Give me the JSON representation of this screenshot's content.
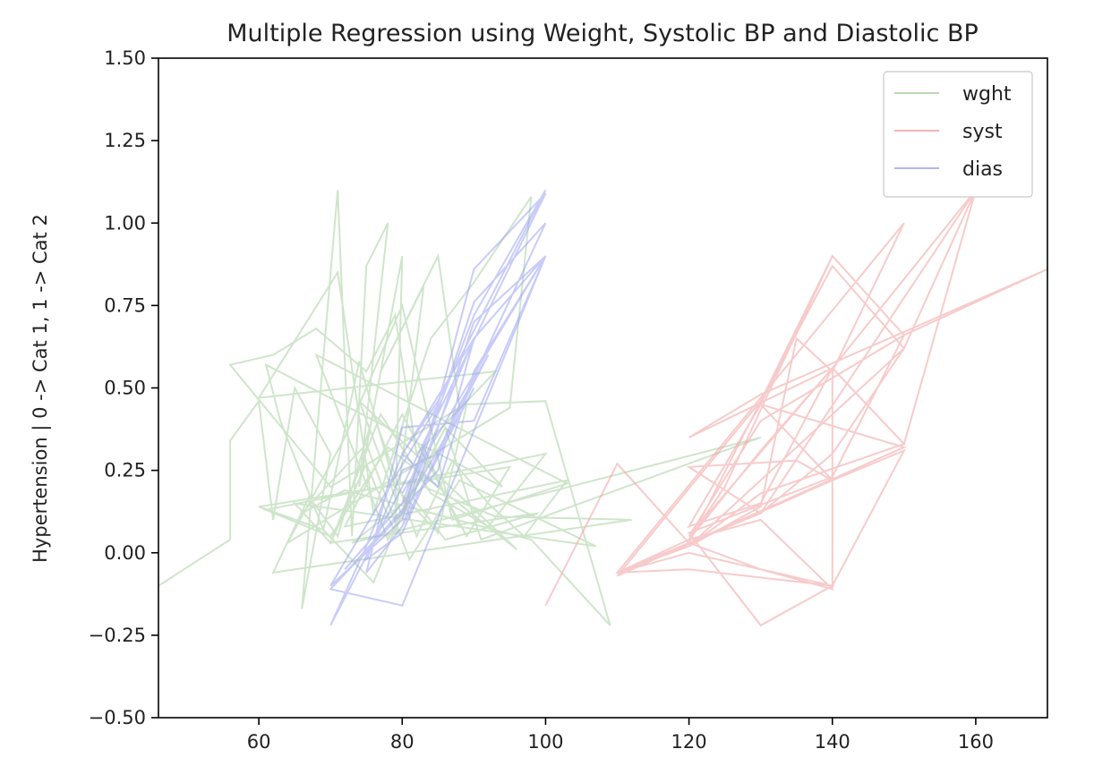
{
  "chart_data": {
    "type": "line",
    "title": "Multiple Regression using Weight, Systolic BP and Diastolic BP",
    "xlabel": "",
    "ylabel": "Hypertension | 0 -> Cat 1, 1 -> Cat 2",
    "xlim": [
      46,
      170
    ],
    "ylim": [
      -0.5,
      1.5
    ],
    "xticks": [
      "60",
      "80",
      "100",
      "120",
      "140",
      "160"
    ],
    "yticks": [
      "−0.50",
      "−0.25",
      "0.00",
      "0.25",
      "0.50",
      "0.75",
      "1.00",
      "1.25",
      "1.50"
    ],
    "xtick_values": [
      60,
      80,
      100,
      120,
      140,
      160
    ],
    "ytick_values": [
      -0.5,
      -0.25,
      0,
      0.25,
      0.5,
      0.75,
      1.0,
      1.25,
      1.5
    ],
    "grid": false,
    "legend_position": "top-right",
    "series": [
      {
        "name": "wght",
        "color": "#a8cfa0",
        "opacity": 0.55,
        "x": [
          46,
          56,
          56,
          60,
          62,
          65,
          70,
          66,
          71,
          73,
          75,
          78,
          74,
          80,
          79,
          83,
          77,
          85,
          88,
          70,
          56,
          62,
          68,
          75,
          79,
          82,
          93,
          60,
          71,
          76,
          84,
          90,
          98,
          95,
          64,
          72,
          80,
          87,
          103,
          68,
          78,
          86,
          94,
          61,
          63,
          69,
          74,
          79,
          85,
          89,
          100,
          109,
          98,
          72,
          66,
          75,
          81,
          88,
          107,
          65,
          70,
          77,
          84,
          92,
          100,
          61,
          70,
          78,
          96,
          74,
          80,
          86,
          91,
          130,
          73,
          83,
          93,
          112,
          62,
          67,
          71,
          76,
          82,
          87,
          92,
          97,
          103,
          72,
          80,
          89,
          95,
          60,
          69,
          76,
          81,
          86,
          99,
          70,
          75,
          79,
          83,
          88
        ],
        "y": [
          -0.1,
          0.04,
          0.34,
          0.46,
          0.1,
          0.5,
          0.3,
          -0.17,
          1.1,
          0.05,
          0.87,
          1.0,
          0.2,
          0.9,
          0.1,
          0.81,
          0.55,
          0.9,
          0.44,
          0.2,
          0.57,
          0.6,
          0.68,
          0.55,
          0.72,
          0.3,
          0.55,
          0.47,
          0.85,
          0.12,
          0.65,
          0.82,
          1.08,
          0.44,
          0.03,
          0.35,
          0.75,
          0.1,
          0.21,
          0.6,
          0.04,
          0.38,
          0.2,
          0.57,
          0.4,
          0.07,
          0.58,
          0.2,
          0.06,
          0.45,
          0.46,
          -0.22,
          0.04,
          0.19,
          0.12,
          0.33,
          -0.02,
          0.22,
          0.02,
          0.15,
          0.03,
          0.42,
          0.18,
          0.08,
          0.3,
          0.13,
          0.05,
          0.32,
          0.01,
          0.46,
          0.11,
          0.38,
          0.04,
          0.35,
          0.03,
          0.2,
          0.11,
          0.1,
          -0.06,
          0.17,
          0.05,
          0.42,
          0.05,
          0.28,
          0.15,
          0.05,
          0.22,
          0.08,
          0.42,
          0.05,
          0.26,
          0.14,
          0.07,
          -0.09,
          0.18,
          0.04,
          0.12,
          0.03,
          0.27,
          0.06,
          0.32,
          0.08
        ]
      },
      {
        "name": "syst",
        "color": "#f2a8a8",
        "opacity": 0.6,
        "x": [
          100,
          110,
          120,
          130,
          140,
          150,
          130,
          120,
          140,
          150,
          160,
          130,
          120,
          135,
          140,
          110,
          130,
          140,
          150,
          120,
          130,
          135,
          140,
          150,
          110,
          120,
          140,
          130,
          120,
          140,
          150,
          170,
          130,
          120,
          140,
          140,
          130,
          120,
          110,
          120,
          150,
          130,
          140,
          125,
          120,
          130,
          140,
          150,
          130,
          120,
          110,
          120,
          140,
          150,
          140,
          130,
          120,
          130,
          140,
          160,
          150,
          140,
          130,
          120,
          130,
          140
        ],
        "y": [
          -0.16,
          0.27,
          0.03,
          0.46,
          0.9,
          0.66,
          0.4,
          0.05,
          0.56,
          0.33,
          1.1,
          0.12,
          0.26,
          0.28,
          0.22,
          -0.07,
          0.46,
          0.87,
          0.62,
          0.02,
          0.14,
          0.65,
          0.55,
          1.0,
          -0.06,
          -0.05,
          -0.1,
          -0.22,
          0.06,
          0.23,
          0.66,
          0.86,
          0.48,
          0.35,
          0.56,
          -0.11,
          0.1,
          0.04,
          -0.06,
          0.03,
          0.32,
          0.45,
          0.9,
          0.2,
          0.04,
          0.31,
          0.56,
          0.33,
          0.18,
          0.02,
          -0.06,
          0.0,
          -0.1,
          0.31,
          0.22,
          0.45,
          0.08,
          0.15,
          0.56,
          1.1,
          0.62,
          0.3,
          0.12,
          0.03,
          -0.05,
          -0.11
        ]
      },
      {
        "name": "dias",
        "color": "#9ca2f2",
        "opacity": 0.55,
        "x": [
          70,
          80,
          85,
          90,
          100,
          80,
          70,
          75,
          80,
          85,
          90,
          100,
          90,
          80,
          85,
          70,
          80,
          90,
          100,
          85,
          80,
          75,
          80,
          90,
          100,
          80,
          70,
          85,
          90,
          80,
          85,
          100,
          90,
          80,
          72,
          78,
          82,
          86,
          92,
          88,
          80,
          75,
          80,
          85,
          90,
          80,
          85,
          90,
          100,
          80
        ],
        "y": [
          -0.11,
          0.12,
          0.45,
          0.86,
          1.09,
          0.2,
          -0.22,
          0.02,
          0.3,
          0.2,
          0.55,
          0.9,
          0.65,
          0.12,
          0.45,
          -0.1,
          0.1,
          0.76,
          1.0,
          0.3,
          0.08,
          -0.06,
          0.38,
          0.4,
          0.9,
          -0.16,
          -0.11,
          0.25,
          0.65,
          0.3,
          0.46,
          1.1,
          0.72,
          0.15,
          -0.05,
          0.1,
          0.2,
          0.35,
          0.6,
          0.45,
          0.06,
          -0.02,
          0.25,
          0.3,
          0.5,
          0.08,
          0.38,
          0.7,
          0.9,
          0.18
        ]
      }
    ]
  }
}
